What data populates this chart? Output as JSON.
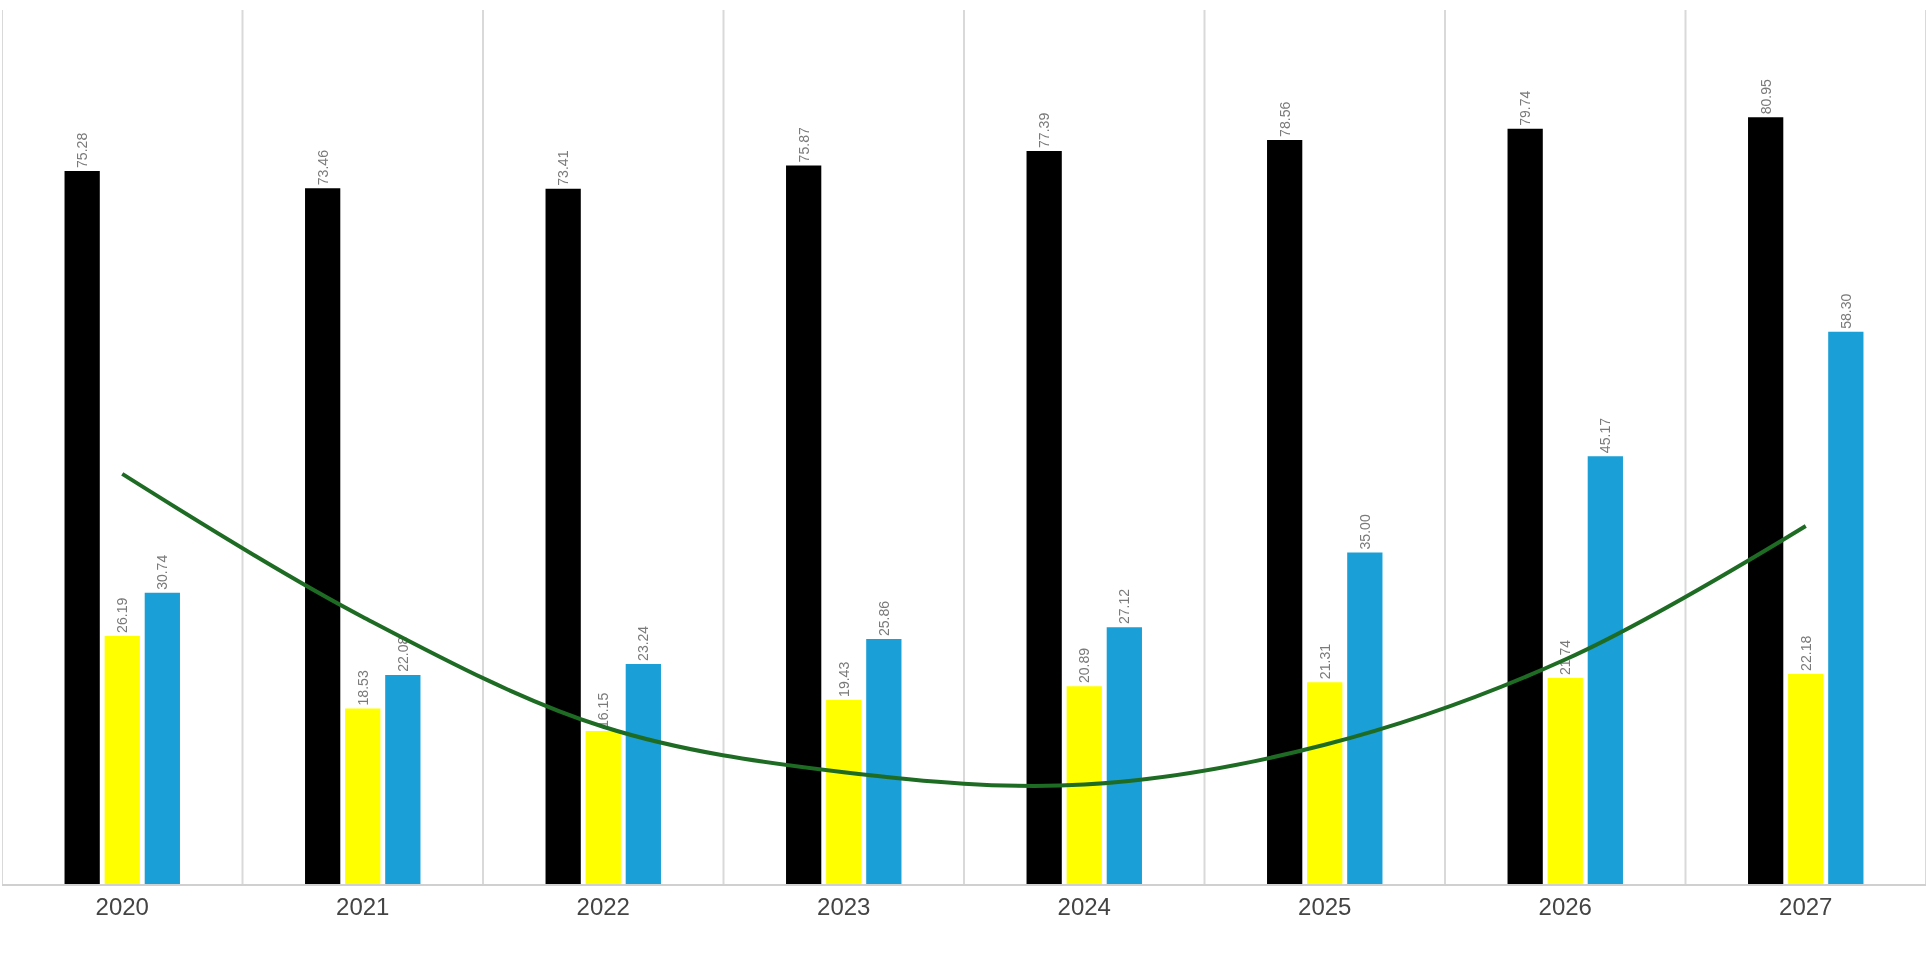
{
  "chart_data": {
    "type": "bar",
    "categories": [
      "2020",
      "2021",
      "2022",
      "2023",
      "2024",
      "2025",
      "2026",
      "2027"
    ],
    "series": [
      {
        "color": "#000000",
        "values": [
          75.28,
          73.46,
          73.41,
          75.87,
          77.39,
          78.56,
          79.74,
          80.95
        ],
        "value_labels": [
          "75.28",
          "73.46",
          "73.41",
          "75.87",
          "77.39",
          "78.56",
          "79.74",
          "80.95"
        ]
      },
      {
        "color": "#ffff00",
        "values": [
          26.19,
          18.53,
          16.15,
          19.43,
          20.89,
          21.31,
          21.74,
          22.18
        ],
        "value_labels": [
          "26.19",
          "18.53",
          "16.15",
          "19.43",
          "20.89",
          "21.31",
          "21.74",
          "22.18"
        ]
      },
      {
        "color": "#1a9fd6",
        "values": [
          30.74,
          22.08,
          23.24,
          25.86,
          27.12,
          35.0,
          45.17,
          58.3
        ],
        "value_labels": [
          "30.74",
          "22.08",
          "23.24",
          "25.86",
          "27.12",
          "35.00",
          "45.17",
          "58.30"
        ]
      },
      {
        "type": "line",
        "color": "#1e6b24",
        "values": [
          43.3,
          28.2,
          16.6,
          11.8,
          10.5,
          14.7,
          23.7,
          37.8
        ]
      }
    ],
    "grid": "x",
    "marker": "none"
  }
}
